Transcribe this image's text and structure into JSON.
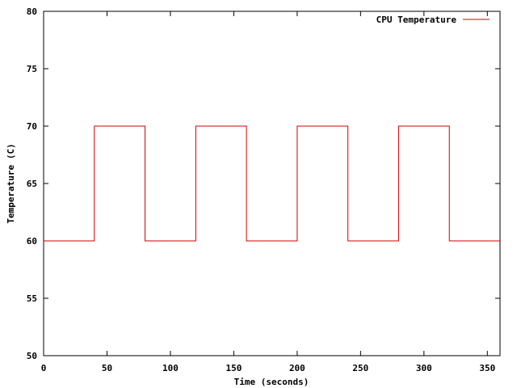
{
  "chart_data": {
    "type": "line",
    "step": true,
    "xlabel": "Time (seconds)",
    "ylabel": "Temperature (C)",
    "xlim": [
      0,
      360
    ],
    "ylim": [
      50,
      80
    ],
    "x_ticks": [
      0,
      50,
      100,
      150,
      200,
      250,
      300,
      350
    ],
    "y_ticks": [
      50,
      55,
      60,
      65,
      70,
      75,
      80
    ],
    "grid": false,
    "legend_position": "top-right",
    "series": [
      {
        "name": "CPU Temperature",
        "color": "#cc0000",
        "x": [
          0,
          40,
          80,
          120,
          160,
          200,
          240,
          280,
          320,
          360
        ],
        "y": [
          60,
          70,
          60,
          70,
          60,
          70,
          60,
          70,
          60,
          60
        ]
      }
    ]
  }
}
